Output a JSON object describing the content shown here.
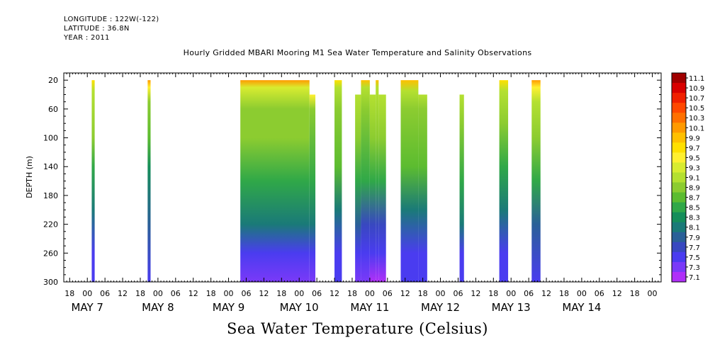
{
  "meta": {
    "longitude": "LONGITUDE : 122W(-122)",
    "latitude": "LATITUDE : 36.8N",
    "year": "YEAR : 2011"
  },
  "title": "Hourly Gridded MBARI Mooring M1 Sea Water Temperature and Salinity Observations",
  "bottom_title": "Sea Water Temperature (Celsius)",
  "chart_data": {
    "type": "heatmap",
    "title": "Hourly Gridded MBARI Mooring M1 Sea Water Temperature and Salinity Observations",
    "ylabel": "DEPTH (m)",
    "xlabel": "",
    "ylim": [
      300,
      10
    ],
    "y_reversed": true,
    "y_ticks": [
      20,
      60,
      100,
      140,
      180,
      220,
      260,
      300
    ],
    "xlim": [
      -8,
      195
    ],
    "x_units": "hours since 2011-05-07 00:00",
    "x_ticks": [
      -6,
      0,
      6,
      12,
      18,
      24,
      30,
      36,
      42,
      48,
      54,
      60,
      66,
      72,
      78,
      84,
      90,
      96,
      102,
      108,
      114,
      120,
      126,
      132,
      138,
      144,
      150,
      156,
      162,
      168,
      174,
      180,
      186,
      192
    ],
    "x_tick_labels": [
      "18",
      "00",
      "06",
      "12",
      "18",
      "00",
      "06",
      "12",
      "18",
      "00",
      "06",
      "12",
      "18",
      "00",
      "06",
      "12",
      "18",
      "00",
      "06",
      "12",
      "18",
      "00",
      "06",
      "12",
      "18",
      "00",
      "06",
      "12",
      "18",
      "00",
      "06",
      "12",
      "18",
      "00"
    ],
    "date_labels": [
      "MAY  7",
      "MAY  8",
      "MAY  9",
      "MAY 10",
      "MAY 11",
      "MAY 12",
      "MAY 13",
      "MAY 14"
    ],
    "date_label_hours": [
      0,
      24,
      48,
      72,
      96,
      120,
      144,
      168
    ],
    "colorbar": {
      "label": "Celsius",
      "levels": [
        "11.1",
        "10.9",
        "10.7",
        "10.5",
        "10.3",
        "10.1",
        "9.9",
        "9.7",
        "9.5",
        "9.3",
        "9.1",
        "8.9",
        "8.7",
        "8.5",
        "8.3",
        "8.1",
        "7.9",
        "7.7",
        "7.5",
        "7.3",
        "7.1"
      ],
      "colors": [
        "#a00000",
        "#d80000",
        "#f02000",
        "#ff4800",
        "#ff7000",
        "#ff9a00",
        "#ffc000",
        "#ffe000",
        "#fff030",
        "#d8ec30",
        "#b4e030",
        "#8ccc30",
        "#5cbc30",
        "#30a848",
        "#158e5a",
        "#1a7a78",
        "#2a6098",
        "#3848c0",
        "#4a3cf0",
        "#7a3af8",
        "#b030f8"
      ]
    },
    "segments": [
      {
        "start_hour": 1.5,
        "end_hour": 2.5,
        "profile": [
          [
            20,
            9.6
          ],
          [
            35,
            9.0
          ],
          [
            100,
            8.8
          ],
          [
            140,
            8.4
          ],
          [
            200,
            8.0
          ],
          [
            260,
            7.6
          ],
          [
            300,
            7.5
          ]
        ]
      },
      {
        "start_hour": 20.5,
        "end_hour": 21.5,
        "profile": [
          [
            20,
            10.0
          ],
          [
            30,
            9.4
          ],
          [
            50,
            8.9
          ],
          [
            100,
            8.7
          ],
          [
            140,
            8.3
          ],
          [
            220,
            7.9
          ],
          [
            300,
            7.5
          ]
        ]
      },
      {
        "start_hour": 52,
        "end_hour": 75.5,
        "profile": [
          [
            20,
            10.2
          ],
          [
            30,
            9.3
          ],
          [
            60,
            8.9
          ],
          [
            100,
            8.8
          ],
          [
            160,
            8.5
          ],
          [
            220,
            8.0
          ],
          [
            260,
            7.5
          ],
          [
            300,
            7.3
          ]
        ]
      },
      {
        "start_hour": 75.5,
        "end_hour": 77.5,
        "top": 40,
        "profile": [
          [
            40,
            9.5
          ],
          [
            60,
            8.9
          ],
          [
            160,
            8.5
          ],
          [
            220,
            8.0
          ],
          [
            260,
            7.5
          ],
          [
            300,
            7.3
          ]
        ]
      },
      {
        "start_hour": 84,
        "end_hour": 86.5,
        "profile": [
          [
            20,
            9.7
          ],
          [
            30,
            9.2
          ],
          [
            60,
            8.9
          ],
          [
            140,
            8.6
          ],
          [
            200,
            8.1
          ],
          [
            260,
            7.6
          ],
          [
            300,
            7.5
          ]
        ]
      },
      {
        "start_hour": 91,
        "end_hour": 93,
        "top": 40,
        "profile": [
          [
            40,
            9.0
          ],
          [
            100,
            8.8
          ],
          [
            160,
            8.4
          ],
          [
            220,
            7.9
          ],
          [
            260,
            7.5
          ],
          [
            300,
            7.3
          ]
        ]
      },
      {
        "start_hour": 93,
        "end_hour": 96,
        "profile": [
          [
            20,
            9.8
          ],
          [
            30,
            9.1
          ],
          [
            60,
            8.9
          ],
          [
            160,
            8.4
          ],
          [
            220,
            7.8
          ],
          [
            260,
            7.4
          ],
          [
            300,
            7.2
          ]
        ]
      },
      {
        "start_hour": 96,
        "end_hour": 98,
        "top": 40,
        "profile": [
          [
            40,
            9.0
          ],
          [
            100,
            8.8
          ],
          [
            160,
            8.4
          ],
          [
            220,
            7.8
          ],
          [
            260,
            7.4
          ],
          [
            300,
            7.1
          ]
        ]
      },
      {
        "start_hour": 98,
        "end_hour": 99,
        "profile": [
          [
            20,
            9.9
          ],
          [
            30,
            9.1
          ],
          [
            100,
            8.8
          ],
          [
            160,
            8.4
          ],
          [
            220,
            7.8
          ],
          [
            260,
            7.4
          ],
          [
            300,
            7.1
          ]
        ]
      },
      {
        "start_hour": 99,
        "end_hour": 101.5,
        "top": 40,
        "profile": [
          [
            40,
            9.0
          ],
          [
            100,
            8.8
          ],
          [
            160,
            8.4
          ],
          [
            220,
            7.8
          ],
          [
            260,
            7.4
          ],
          [
            300,
            7.1
          ]
        ]
      },
      {
        "start_hour": 106.5,
        "end_hour": 112.5,
        "profile": [
          [
            20,
            9.8
          ],
          [
            35,
            9.2
          ],
          [
            60,
            8.9
          ],
          [
            140,
            8.6
          ],
          [
            200,
            8.1
          ],
          [
            260,
            7.6
          ],
          [
            300,
            7.4
          ]
        ]
      },
      {
        "start_hour": 112.5,
        "end_hour": 115.5,
        "top": 40,
        "profile": [
          [
            40,
            9.2
          ],
          [
            60,
            8.9
          ],
          [
            140,
            8.6
          ],
          [
            200,
            8.1
          ],
          [
            260,
            7.6
          ],
          [
            300,
            7.4
          ]
        ]
      },
      {
        "start_hour": 126.5,
        "end_hour": 128,
        "top": 40,
        "profile": [
          [
            40,
            9.1
          ],
          [
            80,
            8.9
          ],
          [
            160,
            8.5
          ],
          [
            220,
            8.0
          ],
          [
            260,
            7.6
          ],
          [
            300,
            7.5
          ]
        ]
      },
      {
        "start_hour": 140,
        "end_hour": 143,
        "profile": [
          [
            20,
            9.7
          ],
          [
            35,
            9.1
          ],
          [
            80,
            8.8
          ],
          [
            140,
            8.5
          ],
          [
            200,
            8.1
          ],
          [
            260,
            7.6
          ],
          [
            300,
            7.5
          ]
        ]
      },
      {
        "start_hour": 151,
        "end_hour": 154,
        "profile": [
          [
            20,
            10.2
          ],
          [
            30,
            9.5
          ],
          [
            50,
            9.0
          ],
          [
            100,
            8.8
          ],
          [
            160,
            8.4
          ],
          [
            220,
            7.9
          ],
          [
            300,
            7.5
          ]
        ]
      }
    ]
  }
}
